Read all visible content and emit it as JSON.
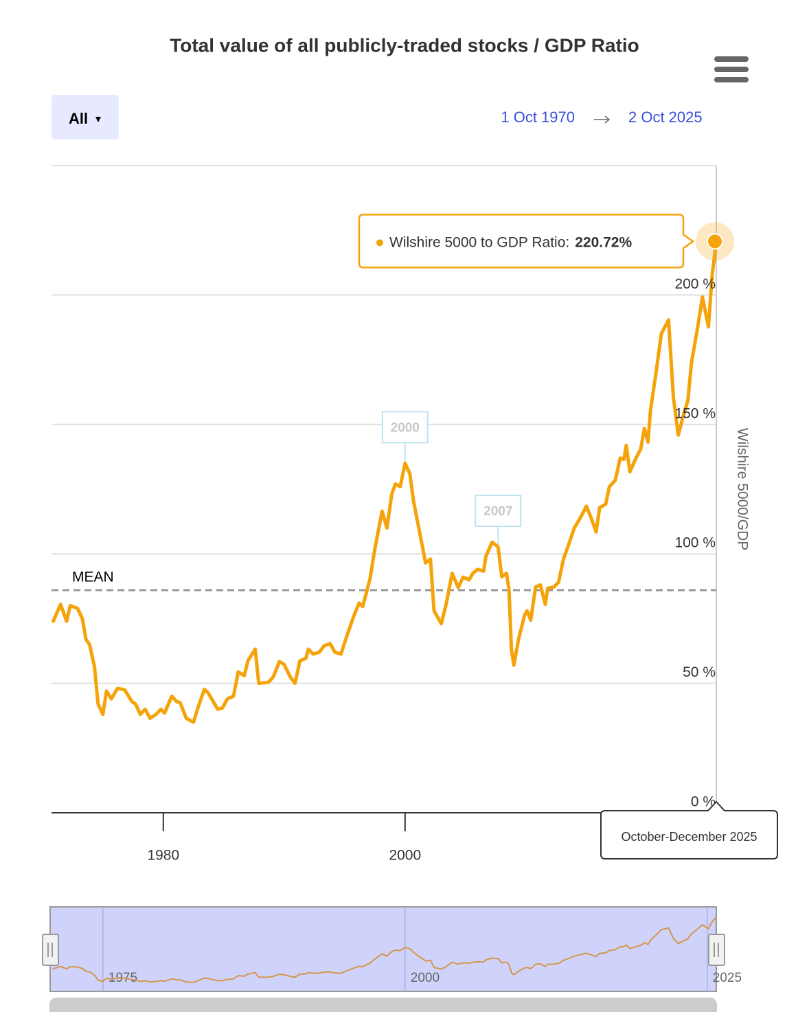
{
  "chart_data": {
    "type": "line",
    "title": "Total value of all publicly-traded stocks / GDP Ratio",
    "range_selector": "All",
    "range_from": "1 Oct 1970",
    "range_to": "2 Oct 2025",
    "y_label": "Wilshire 5000/GDP",
    "color": "#f5a30a",
    "x": [
      1970.9,
      1971.5,
      1972.0,
      1972.3,
      1972.9,
      1973.3,
      1973.6,
      1973.9,
      1974.3,
      1974.6,
      1975.0,
      1975.3,
      1975.7,
      1976.2,
      1976.8,
      1977.4,
      1977.7,
      1978.1,
      1978.5,
      1978.9,
      1979.4,
      1979.8,
      1980.1,
      1980.7,
      1981.1,
      1981.4,
      1981.9,
      1982.5,
      1982.9,
      1983.4,
      1983.7,
      1984.5,
      1984.9,
      1985.3,
      1985.8,
      1986.2,
      1986.7,
      1987.0,
      1987.6,
      1987.9,
      1988.7,
      1989.1,
      1989.6,
      1990.0,
      1990.5,
      1990.9,
      1991.3,
      1991.8,
      1992.0,
      1992.4,
      1992.9,
      1993.3,
      1993.8,
      1994.2,
      1994.7,
      1995.2,
      1995.8,
      1996.2,
      1996.5,
      1997.1,
      1997.5,
      1998.1,
      1998.5,
      1998.9,
      1999.2,
      1999.6,
      2000.0,
      2000.4,
      2000.7,
      2001.2,
      2001.7,
      2002.1,
      2002.4,
      2003.0,
      2003.4,
      2003.9,
      2004.4,
      2004.8,
      2005.3,
      2005.6,
      2006.0,
      2006.5,
      2006.7,
      2007.2,
      2007.7,
      2008.0,
      2008.4,
      2008.6,
      2008.8,
      2009.0,
      2009.4,
      2009.9,
      2010.1,
      2010.4,
      2010.8,
      2011.2,
      2011.6,
      2011.8,
      2012.3,
      2012.7,
      2013.1,
      2013.6,
      2014.0,
      2014.5,
      2015.0,
      2015.4,
      2015.8,
      2016.1,
      2016.6,
      2016.9,
      2017.4,
      2017.8,
      2018.1,
      2018.3,
      2018.6,
      2019.1,
      2019.5,
      2019.8,
      2020.1,
      2020.3,
      2020.8,
      2021.2,
      2021.8,
      2022.2,
      2022.6,
      2023.0,
      2023.4,
      2023.7,
      2024.2,
      2024.6,
      2025.1,
      2025.4,
      2025.75
    ],
    "values": [
      74,
      80.5,
      74,
      80,
      79,
      75,
      67,
      65,
      56.5,
      42,
      38,
      47,
      44,
      48,
      47.5,
      43,
      42,
      38,
      40,
      36.5,
      38,
      40,
      38.5,
      45,
      43,
      42.5,
      36.5,
      35,
      41,
      47.7,
      46.4,
      40,
      40.5,
      44,
      45,
      54.4,
      53,
      58.7,
      63.2,
      50,
      50.4,
      52.5,
      58.4,
      57.3,
      52.5,
      50,
      58.7,
      59.7,
      63.2,
      61.3,
      62,
      64.5,
      65.3,
      62,
      61.3,
      68.5,
      76.5,
      81,
      79.7,
      90.4,
      101.9,
      116.5,
      110,
      123,
      127,
      126,
      135,
      131,
      120.5,
      108.5,
      96.5,
      98,
      78,
      73,
      80.5,
      92.5,
      87,
      91,
      90,
      92.5,
      94,
      93.3,
      99.2,
      104.5,
      102.7,
      91.2,
      92.5,
      86,
      63.2,
      57,
      67.2,
      76.5,
      78,
      74.4,
      87.2,
      88,
      80.5,
      86.7,
      87.2,
      89,
      97.9,
      104.5,
      110,
      113.9,
      118.4,
      113.9,
      108.5,
      117.9,
      119.2,
      125.9,
      128.5,
      137,
      136.5,
      141.9,
      131.7,
      137,
      140.5,
      148.5,
      143.2,
      155.2,
      171.2,
      185,
      190.4,
      160.5,
      145.9,
      153,
      159.2,
      173.9,
      187.2,
      199.2,
      187.7,
      207.2,
      220.72
    ],
    "xlim": [
      1970.75,
      2025.75
    ],
    "xticks": [
      1980,
      2000
    ],
    "ylim": [
      0,
      250
    ],
    "yticks": [
      {
        "value": 0,
        "label": "0 %"
      },
      {
        "value": 50,
        "label": "50 %"
      },
      {
        "value": 100,
        "label": "100 %"
      },
      {
        "value": 150,
        "label": "150 %"
      },
      {
        "value": 200,
        "label": "200 %"
      }
    ],
    "grid": true,
    "mean": {
      "label": "MEAN",
      "value": 86
    },
    "flags": [
      {
        "label": "2000",
        "x": 2000.0
      },
      {
        "label": "2007",
        "x": 2007.7
      }
    ],
    "tooltip": {
      "label": "Wilshire 5000 to GDP Ratio:",
      "value_label": "220.72%",
      "x_label": "October-December 2025"
    },
    "navigator": {
      "xticks": [
        1975,
        2000,
        2025
      ]
    }
  }
}
